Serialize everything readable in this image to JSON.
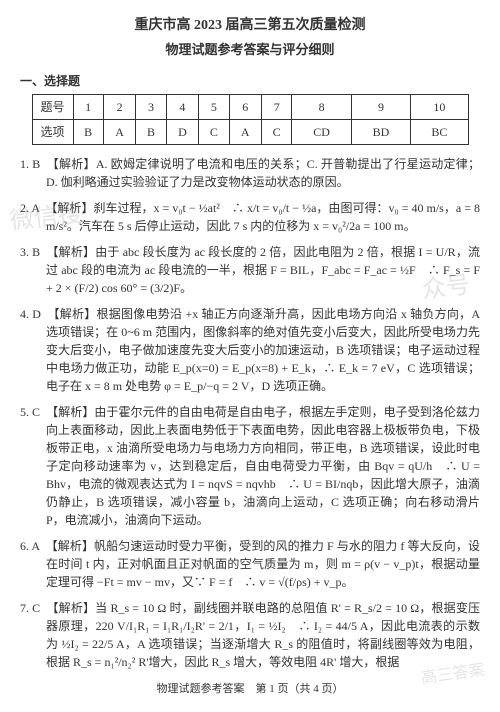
{
  "titles": {
    "main": "重庆市高 2023 届高三第五次质量检测",
    "sub": "物理试题参考答案与评分细则"
  },
  "sectionHeader": "一、选择题",
  "table": {
    "rowLabels": [
      "题号",
      "选项"
    ],
    "nums": [
      "1",
      "2",
      "3",
      "4",
      "5",
      "6",
      "7",
      "8",
      "9",
      "10"
    ],
    "ans": [
      "B",
      "A",
      "B",
      "D",
      "C",
      "A",
      "C",
      "CD",
      "BD",
      "BC"
    ]
  },
  "items": [
    {
      "num": "1. B",
      "body": "【解析】A. 欧姆定律说明了电流和电压的关系；C. 开普勒提出了行星运动定律；D. 伽利略通过实验验证了力是改变物体运动状态的原因。"
    },
    {
      "num": "2. A",
      "body": "【解析】刹车过程，x = v₀t − ½at²　∴ x/t = v₀/t − ½a，由图可得：v₀ = 40 m/s，a = 8 m/s²。汽车在 5 s 后停止运动，因此 7 s 内的位移为 x = v₀²/2a = 100 m。"
    },
    {
      "num": "3. B",
      "body": "【解析】由于 abc 段长度为 ac 段长度的 2 倍，因此电阻为 2 倍，根据 I = U/R，流过 abc 段的电流为 ac 段电流的一半，根据 F = BIL，F_abc = F_ac = ½F　∴ F_s = F + 2 × (F/2) cos 60° = (3/2)F。"
    },
    {
      "num": "4. D",
      "body": "【解析】根据图像电势沿 +x 轴正方向逐渐升高，因此电场方向沿 x 轴负方向，A 选项错误；在 0~6 m 范围内，图像斜率的绝对值先变小后变大，因此所受电场力先变大后变小，电子做加速度先变大后变小的加速运动，B 选项错误；电子运动过程中电场力做正功，动能 E_p(x=0) = E_p(x=8) + E_k，∴ E_k = 7 eV，C 选项错误；电子在 x = 8 m 处电势 φ = E_p/−q = 2 V，D 选项正确。"
    },
    {
      "num": "5. C",
      "body": "【解析】由于霍尔元件的自由电荷是自由电子，根据左手定则，电子受到洛伦兹力向上表面移动，因此上表面电势低于下表面电势，因此电容器上极板带负电，下极板带正电，x 油滴所受电场力与电场力方向相同，带正电，B 选项错误，设此时电子定向移动速率为 v，达到稳定后，自由电荷受力平衡，由 Bqv = qU/h　∴ U = Bhv，电流的微观表达式为 I = nqvS = nqvhb　∴ U = BI/nqb，因此增大原子，油滴仍静止，B 选项错误，减小容量 b，油滴向上运动，C 选项正确；向右移动滑片 P，电流减小，油滴向下运动。"
    },
    {
      "num": "6. A",
      "body": "【解析】帆船匀速运动时受力平衡，受到的风的推力 F 与水的阻力 f 等大反向，设在时间 t 内，正对帆面且正对帆面的空气质量为 m，则 m = ρ(v − v_p)t，根据动量定理可得  −Ft = mv − mv，又∵ F = f　∴ v = √(f/ρs) + v_p。"
    },
    {
      "num": "7. C",
      "body": "【解析】当 R_s = 10 Ω 时，副线圈并联电路的总阻值 R' = R_s/2 = 10 Ω，根据变压器原理，220 V/I₁R₁ = I₁R₁/I₂R' = 2/1，I₁ = ½I₂　∴ I₂ = 44/5 A，因此电流表的示数为 ½I₂ = 22/5 A，A 选项错误；当逐渐增大 R_s 的阻值时，将副线圈等效为电阻，根据 R_s = n₁²/n₂² R'增大，因此 R_s 增大，等效电阻 4R' 增大，根据"
    }
  ],
  "footer": "物理试题参考答案　第 1 页（共 4 页）",
  "watermarks": {
    "w1": "微信搜",
    "w2": "众号",
    "w3": "高三答案"
  }
}
